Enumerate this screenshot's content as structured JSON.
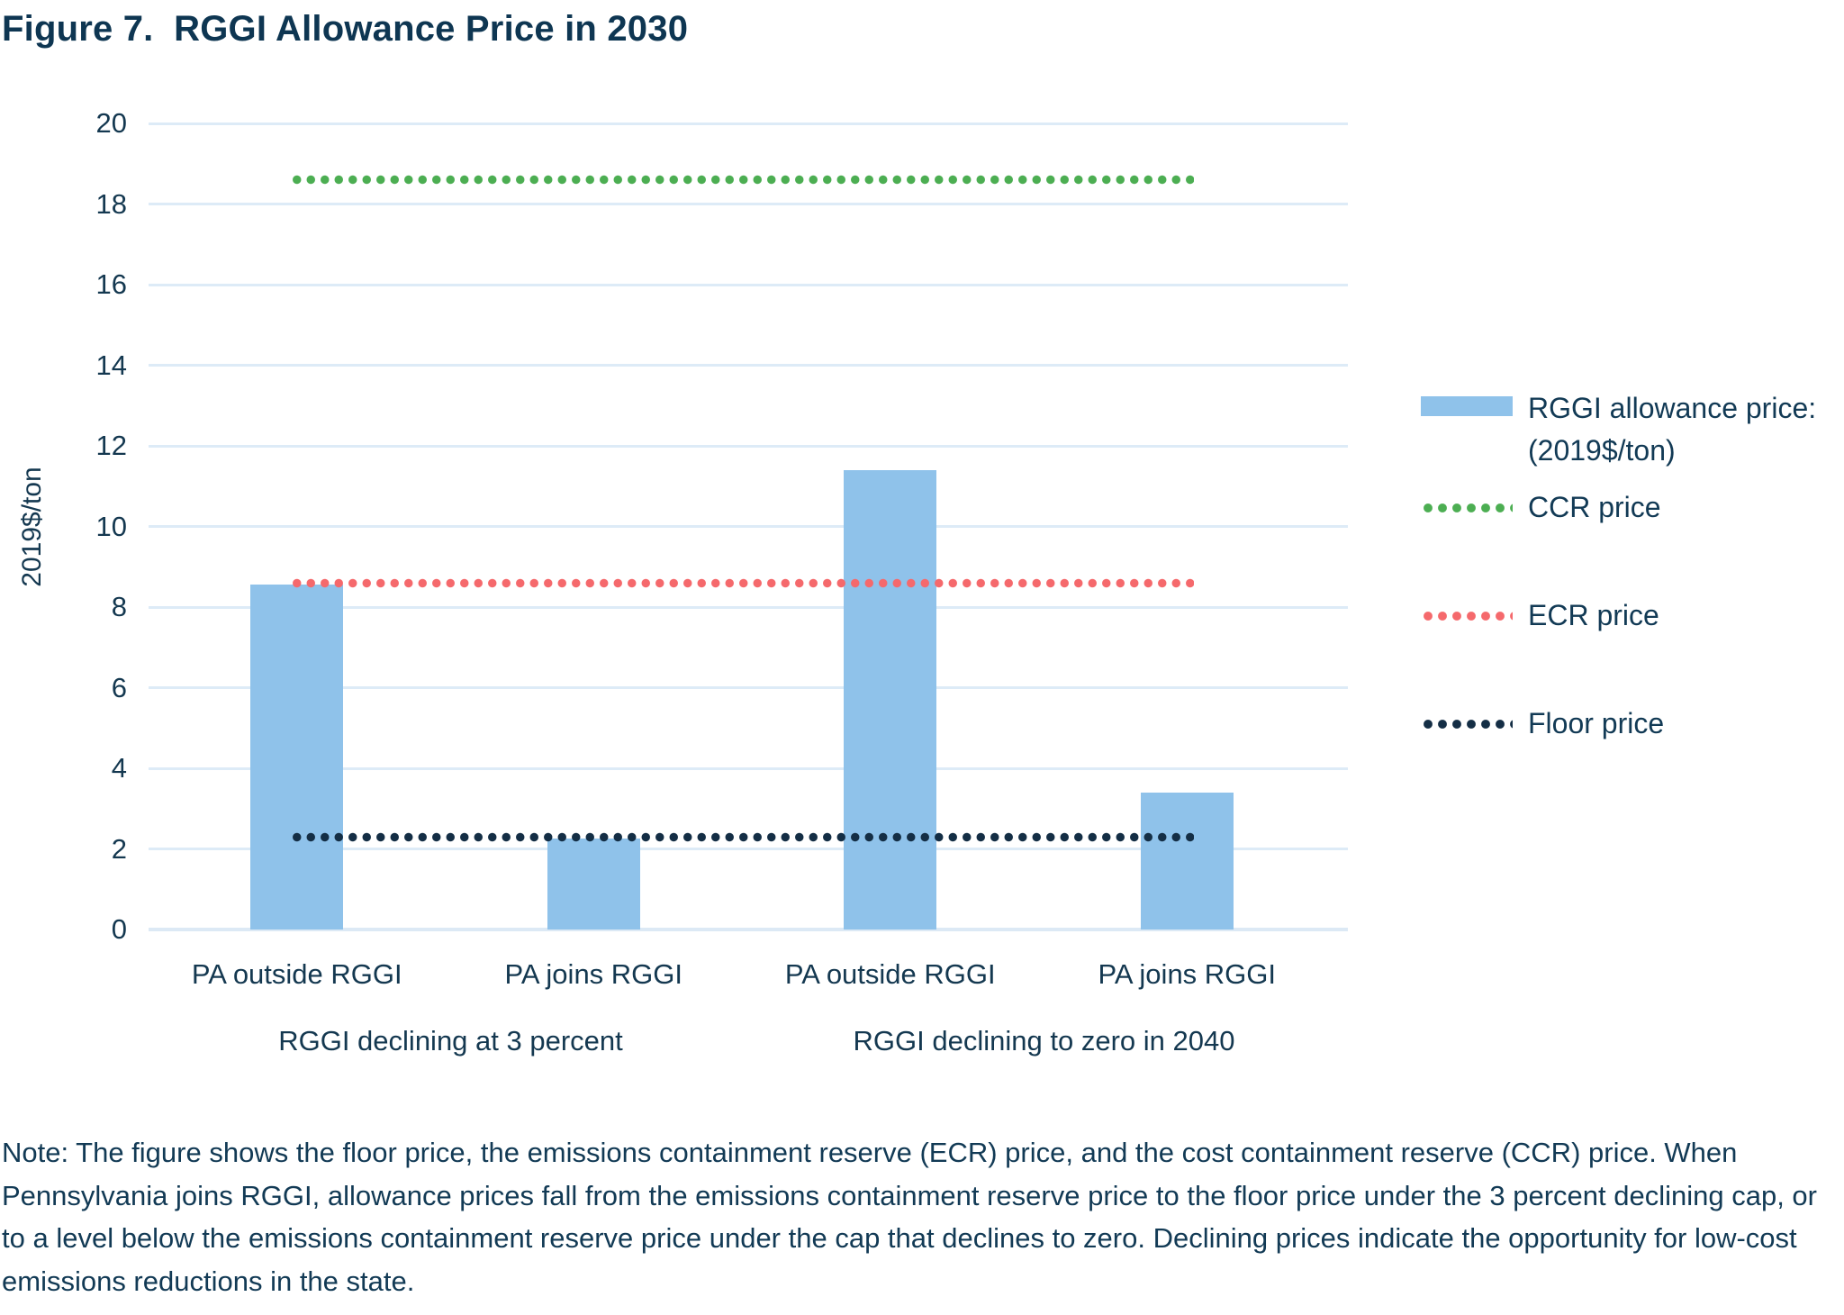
{
  "title": "Figure 7.  RGGI Allowance Price in 2030",
  "chart_data": {
    "type": "bar",
    "title": "Figure 7. RGGI Allowance Price in 2030",
    "xlabel": "",
    "ylabel": "2019$/ton",
    "ylim": [
      0,
      20
    ],
    "yticks": [
      0,
      2,
      4,
      6,
      8,
      10,
      12,
      14,
      16,
      18,
      20
    ],
    "grid": true,
    "legend_position": "right",
    "categories": [
      "PA outside RGGI",
      "PA joins RGGI",
      "PA outside RGGI",
      "PA joins RGGI"
    ],
    "group_labels": [
      "RGGI declining at 3 percent",
      "RGGI declining to zero in 2040"
    ],
    "series": [
      {
        "name": "RGGI allowance price: (2019$/ton)",
        "values": [
          8.55,
          2.25,
          11.4,
          3.4
        ]
      }
    ],
    "bar_color": "#8FC2EA",
    "gridline_color": "#DDEBF7",
    "reference_lines": [
      {
        "name": "CCR price",
        "value": 18.6,
        "color": "#4CAE52"
      },
      {
        "name": "ECR price",
        "value": 8.6,
        "color": "#F5696C"
      },
      {
        "name": "Floor price",
        "value": 2.3,
        "color": "#142E45"
      }
    ]
  },
  "legend": {
    "bar_label_line1": "RGGI allowance price:",
    "bar_label_line2": "(2019$/ton)",
    "ccr_label": "CCR price",
    "ecr_label": "ECR price",
    "floor_label": "Floor price"
  },
  "note": "Note: The figure shows the floor price, the emissions containment reserve (ECR) price, and the cost containment reserve (CCR) price. When Pennsylvania joins RGGI, allowance prices fall from the emissions containment reserve price to the floor price under the 3 percent declining cap, or to a level below the emissions containment reserve price under the cap that declines to zero. Declining prices indicate the opportunity for low-cost emissions reductions in the state."
}
